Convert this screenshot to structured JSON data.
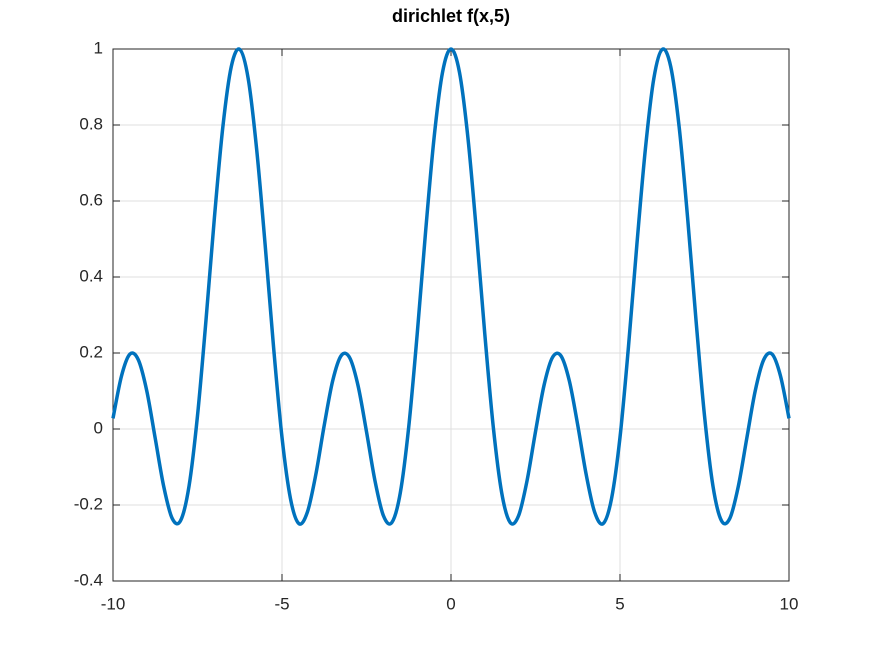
{
  "chart_data": {
    "type": "line",
    "title": "dirichlet f(x,5)",
    "x": [
      -10,
      -9.75,
      -9.5,
      -9.25,
      -9,
      -8.75,
      -8.5,
      -8.25,
      -8,
      -7.75,
      -7.5,
      -7.25,
      -7,
      -6.75,
      -6.5,
      -6.25,
      -6,
      -5.75,
      -5.5,
      -5.25,
      -5,
      -4.75,
      -4.5,
      -4.25,
      -4,
      -3.75,
      -3.5,
      -3.25,
      -3,
      -2.75,
      -2.5,
      -2.25,
      -2,
      -1.75,
      -1.5,
      -1.25,
      -1,
      -0.75,
      -0.5,
      -0.25,
      0,
      0.25,
      0.5,
      0.75,
      1,
      1.25,
      1.5,
      1.75,
      2,
      2.25,
      2.5,
      2.75,
      3,
      3.25,
      3.5,
      3.75,
      4,
      4.25,
      4.5,
      4.75,
      5,
      5.25,
      5.5,
      5.75,
      6,
      6.25,
      6.5,
      6.75,
      7,
      7.25,
      7.5,
      7.75,
      8,
      8.25,
      8.5,
      8.75,
      9,
      9.25,
      9.5,
      9.75,
      10
    ],
    "series": [
      {
        "color": "#0072bd",
        "values": [
          0.028,
          0.139,
          0.197,
          0.182,
          0.1,
          -0.025,
          -0.151,
          -0.235,
          -0.241,
          -0.15,
          0.035,
          0.285,
          0.556,
          0.795,
          0.954,
          0.999,
          0.922,
          0.736,
          0.486,
          0.216,
          -0.022,
          -0.183,
          -0.249,
          -0.219,
          -0.12,
          0.01,
          0.127,
          0.193,
          0.188,
          0.114,
          -0.007,
          -0.136,
          -0.228,
          -0.246,
          -0.168,
          0.006,
          0.25,
          0.521,
          0.767,
          0.939,
          1,
          0.939,
          0.767,
          0.521,
          0.25,
          0.006,
          -0.168,
          -0.246,
          -0.228,
          -0.136,
          -0.007,
          0.114,
          0.188,
          0.193,
          0.127,
          0.01,
          -0.12,
          -0.219,
          -0.249,
          -0.183,
          -0.022,
          0.216,
          0.486,
          0.736,
          0.922,
          0.999,
          0.954,
          0.795,
          0.556,
          0.285,
          0.035,
          -0.15,
          -0.241,
          -0.235,
          -0.151,
          -0.025,
          0.1,
          0.182,
          0.197,
          0.139,
          0.028
        ]
      }
    ],
    "xlim": [
      -10,
      10
    ],
    "xticks": [
      -10,
      -5,
      0,
      5,
      10
    ],
    "ylim": [
      -0.4,
      1
    ],
    "yticks": [
      -0.4,
      -0.2,
      0,
      0.2,
      0.4,
      0.6,
      0.8,
      1
    ],
    "grid": true
  }
}
